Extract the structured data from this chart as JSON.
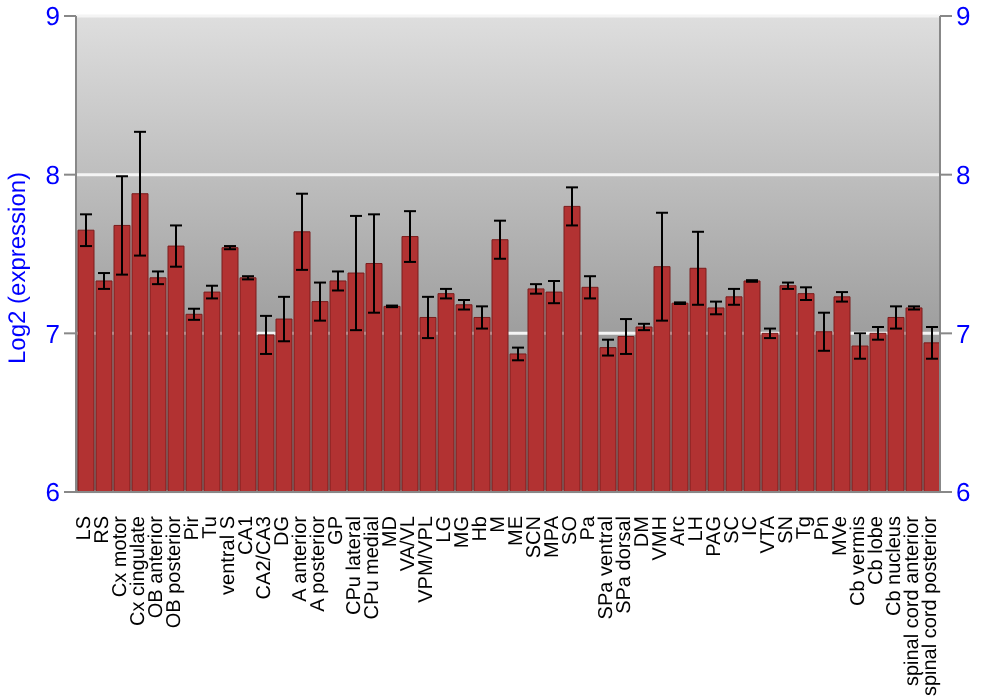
{
  "chart_data": {
    "type": "bar",
    "ylabel": "Log2 (expression)",
    "categories": [
      "LS",
      "RS",
      "Cx motor",
      "Cx cingulate",
      "OB anterior",
      "OB posterior",
      "Pir",
      "Tu",
      "ventral S",
      "CA1",
      "CA2/CA3",
      "DG",
      "A anterior",
      "A posterior",
      "GP",
      "CPu lateral",
      "CPu medial",
      "MD",
      "VA/VL",
      "VPM/VPL",
      "LG",
      "MG",
      "Hb",
      "M",
      "ME",
      "SCN",
      "MPA",
      "SO",
      "Pa",
      "SPa ventral",
      "SPa dorsal",
      "DM",
      "VMH",
      "Arc",
      "LH",
      "PAG",
      "SC",
      "IC",
      "VTA",
      "SN",
      "Tg",
      "Pn",
      "MVe",
      "Cb vermis",
      "Cb lobe",
      "Cb nucleus",
      "spinal cord anterior",
      "spinal cord posterior"
    ],
    "values": [
      7.65,
      7.33,
      7.68,
      7.88,
      7.35,
      7.55,
      7.12,
      7.26,
      7.54,
      7.35,
      6.99,
      7.09,
      7.64,
      7.2,
      7.33,
      7.38,
      7.44,
      7.17,
      7.61,
      7.1,
      7.25,
      7.18,
      7.1,
      7.59,
      6.87,
      7.28,
      7.26,
      7.8,
      7.29,
      6.91,
      6.98,
      7.04,
      7.42,
      7.19,
      7.41,
      7.16,
      7.23,
      7.33,
      7.0,
      7.3,
      7.25,
      7.01,
      7.23,
      6.92,
      7.0,
      7.1,
      7.16,
      6.94
    ],
    "errors": [
      0.1,
      0.05,
      0.31,
      0.39,
      0.04,
      0.13,
      0.035,
      0.04,
      0.01,
      0.01,
      0.12,
      0.14,
      0.24,
      0.12,
      0.06,
      0.36,
      0.31,
      0.005,
      0.16,
      0.13,
      0.03,
      0.03,
      0.07,
      0.12,
      0.04,
      0.03,
      0.07,
      0.12,
      0.07,
      0.05,
      0.11,
      0.02,
      0.34,
      0.005,
      0.23,
      0.04,
      0.05,
      0.005,
      0.03,
      0.02,
      0.04,
      0.12,
      0.03,
      0.08,
      0.04,
      0.07,
      0.01,
      0.1
    ],
    "color": "#b23232",
    "ylim": [
      6,
      9
    ],
    "yticks": [
      6,
      7,
      8,
      9
    ],
    "y2lim": [
      6,
      9
    ],
    "y2ticks": [
      6,
      7,
      8,
      9
    ],
    "grid": "y"
  }
}
